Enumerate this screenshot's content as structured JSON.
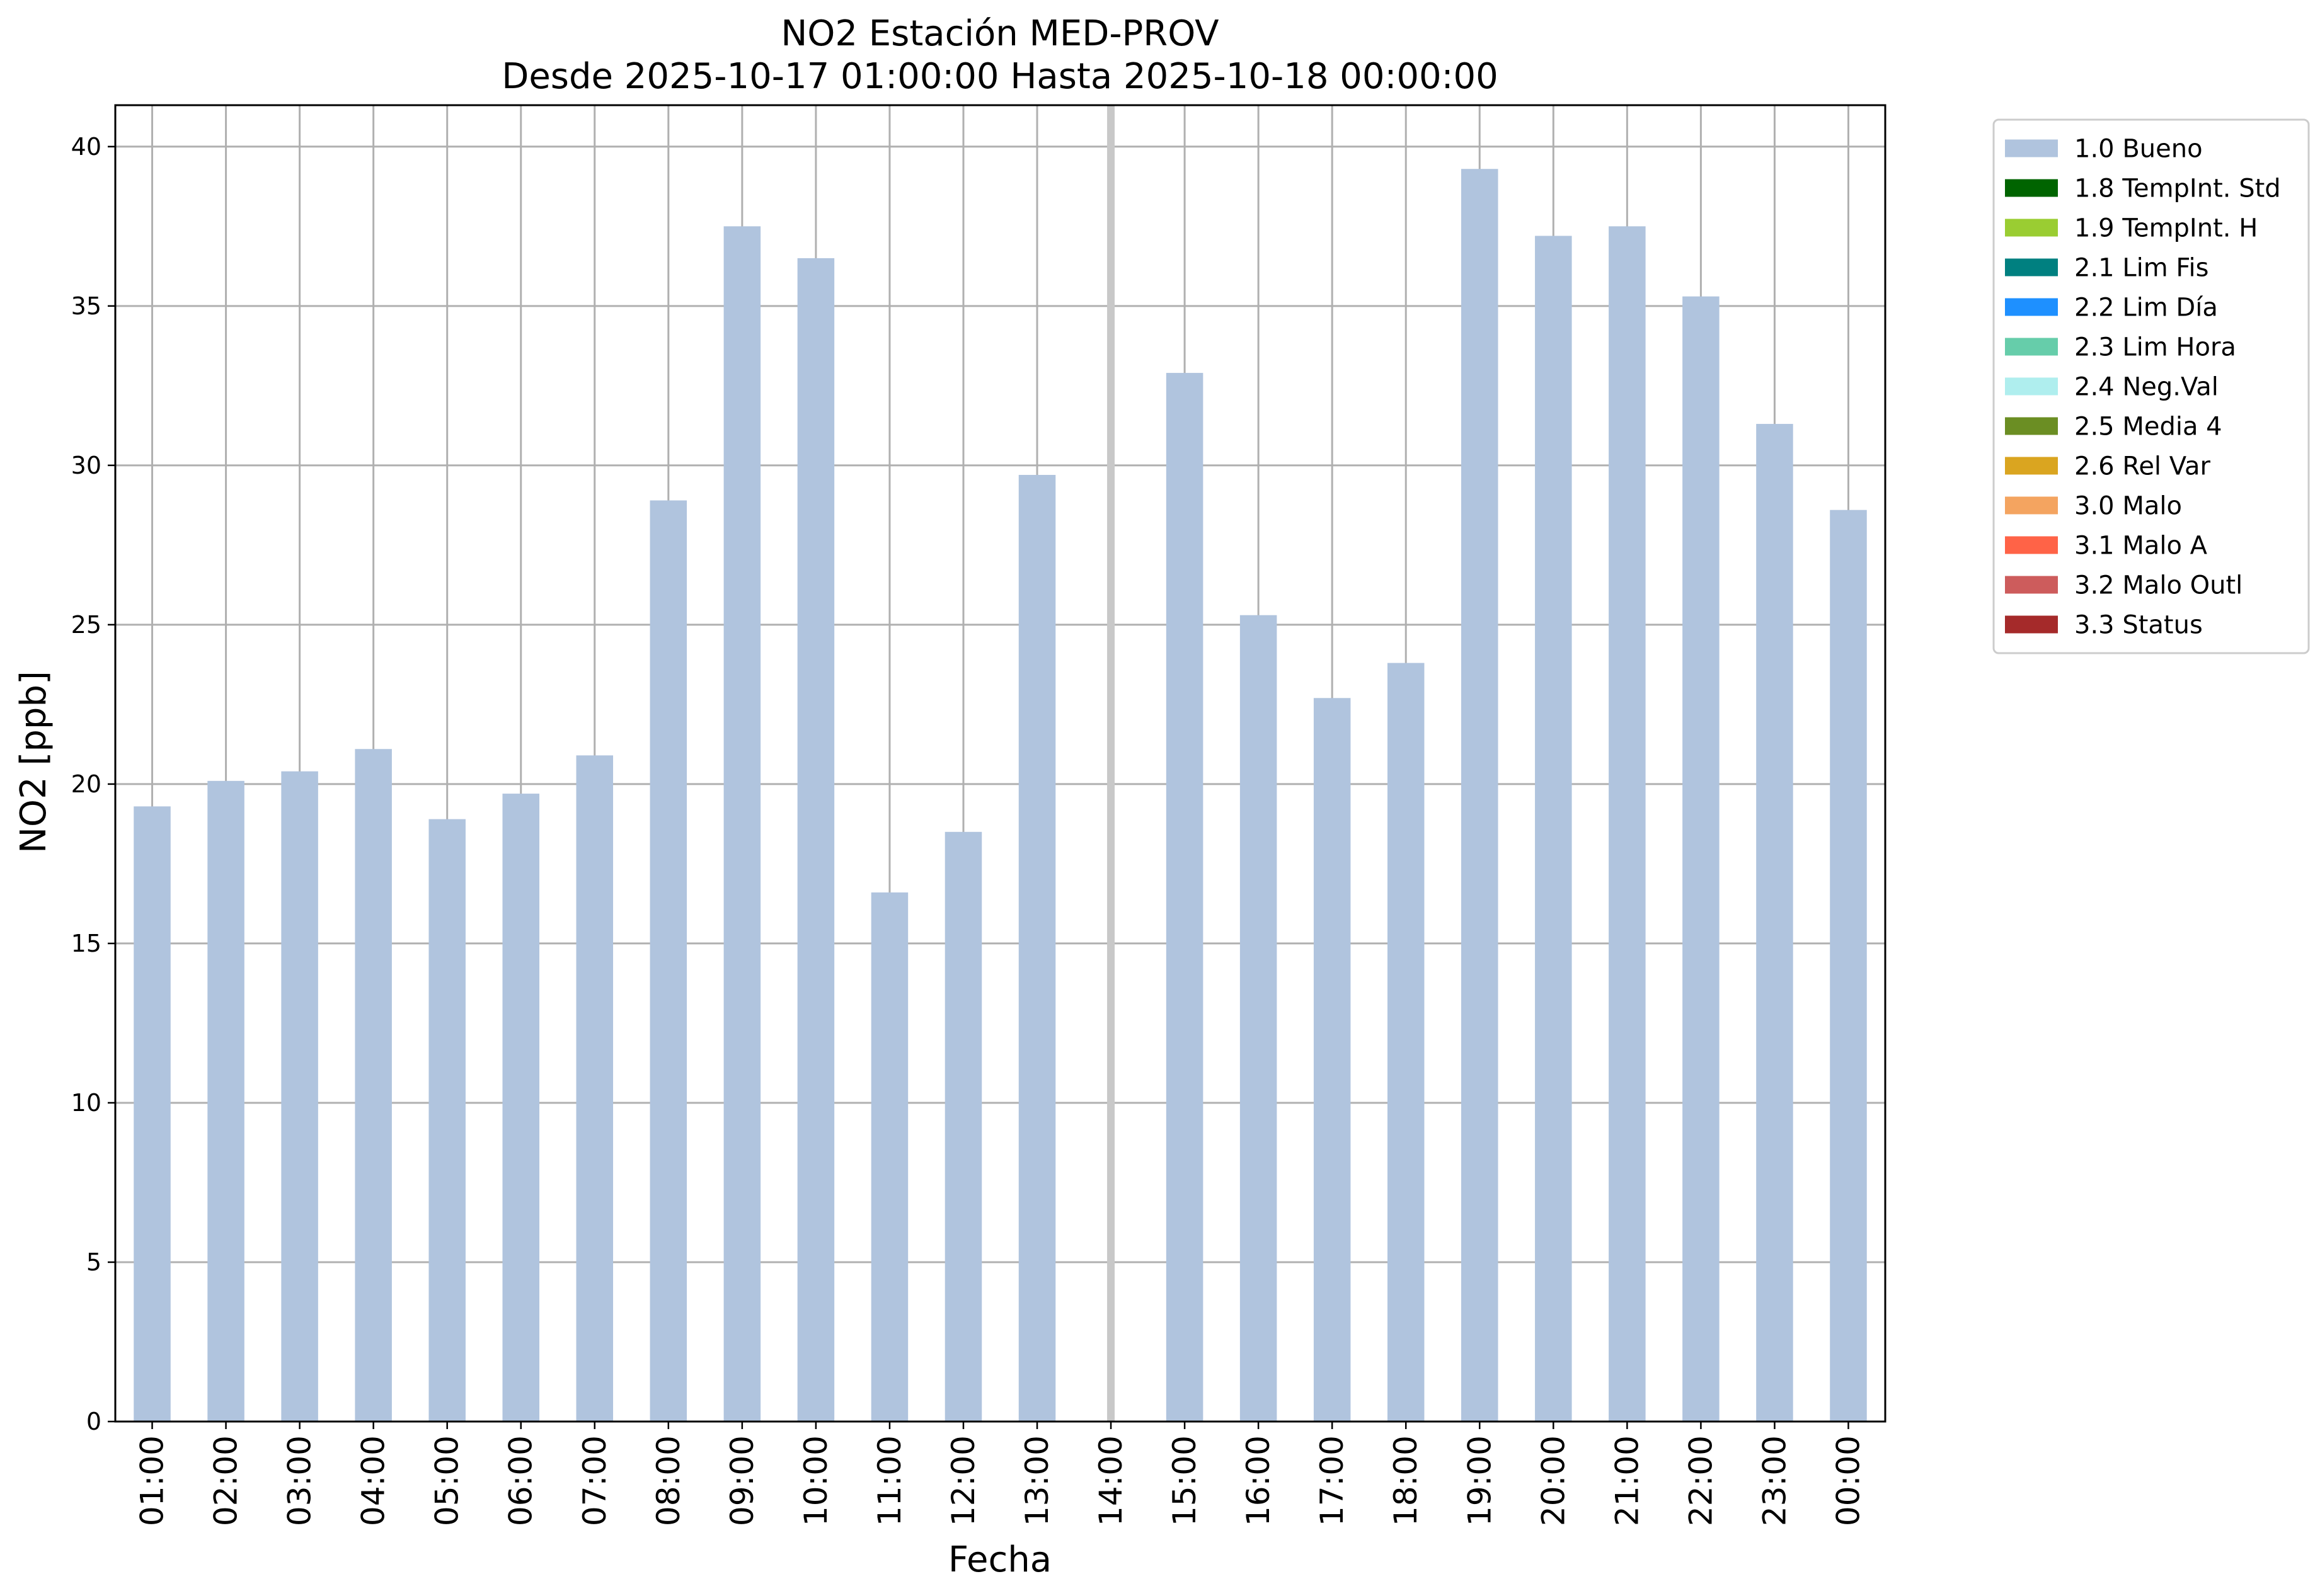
{
  "chart_data": {
    "type": "bar",
    "title": "NO2 Estación MED-PROV",
    "subtitle": "Desde 2025-10-17 01:00:00 Hasta 2025-10-18 00:00:00",
    "xlabel": "Fecha",
    "ylabel": "NO2 [ppb]",
    "ylim": [
      0,
      41.3
    ],
    "yticks": [
      "0",
      "5",
      "10",
      "15",
      "20",
      "25",
      "30",
      "35",
      "40"
    ],
    "grid": true,
    "legend_position": "outside-right",
    "categories": [
      "01:00",
      "02:00",
      "03:00",
      "04:00",
      "05:00",
      "06:00",
      "07:00",
      "08:00",
      "09:00",
      "10:00",
      "11:00",
      "12:00",
      "13:00",
      "14:00",
      "15:00",
      "16:00",
      "17:00",
      "18:00",
      "19:00",
      "20:00",
      "21:00",
      "22:00",
      "23:00",
      "00:00"
    ],
    "series": [
      {
        "name": "1.0 Bueno",
        "color": "#b0c4de",
        "values": [
          19.3,
          20.1,
          20.4,
          21.1,
          18.9,
          19.7,
          20.9,
          28.9,
          37.5,
          36.5,
          16.6,
          18.5,
          29.7,
          null,
          32.9,
          25.3,
          22.7,
          23.8,
          39.3,
          37.2,
          37.5,
          35.3,
          31.3,
          28.6
        ]
      }
    ],
    "missing_marker": {
      "category": "14:00",
      "color": "#c8c8c8"
    },
    "legend": [
      {
        "label": "1.0 Bueno",
        "color": "#b0c4de"
      },
      {
        "label": "1.8 TempInt. Std",
        "color": "#006400"
      },
      {
        "label": "1.9 TempInt. H",
        "color": "#9acd32"
      },
      {
        "label": "2.1 Lim Fis",
        "color": "#008080"
      },
      {
        "label": "2.2 Lim Día",
        "color": "#1e90ff"
      },
      {
        "label": "2.3 Lim Hora",
        "color": "#66cdaa"
      },
      {
        "label": "2.4 Neg.Val",
        "color": "#afeeee"
      },
      {
        "label": "2.5 Media 4",
        "color": "#6b8e23"
      },
      {
        "label": "2.6 Rel Var",
        "color": "#daa520"
      },
      {
        "label": "3.0 Malo",
        "color": "#f4a460"
      },
      {
        "label": "3.1 Malo A",
        "color": "#ff6347"
      },
      {
        "label": "3.2 Malo Outl",
        "color": "#cd5c5c"
      },
      {
        "label": "3.3 Status",
        "color": "#a52a2a"
      }
    ]
  }
}
